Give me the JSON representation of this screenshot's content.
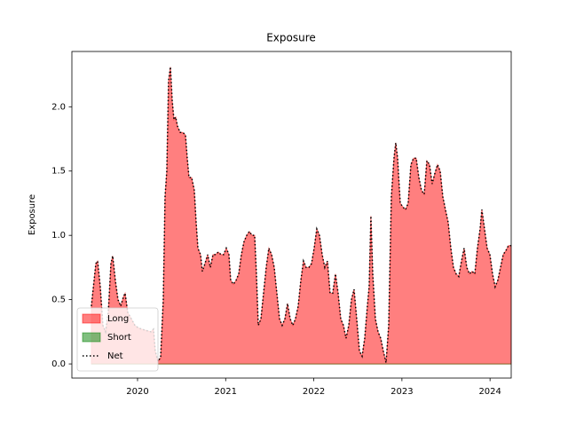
{
  "chart_data": {
    "type": "area",
    "title": "Exposure",
    "y_label": "Exposure",
    "x": [
      2019.476,
      2019.507,
      2019.527,
      2019.547,
      2019.577,
      2019.607,
      2019.637,
      2019.668,
      2019.698,
      2019.718,
      2019.748,
      2019.778,
      2019.809,
      2019.839,
      2019.859,
      2019.889,
      2019.93,
      2019.97,
      2020.01,
      2020.05,
      2020.101,
      2020.151,
      2020.181,
      2020.201,
      2020.232,
      2020.262,
      2020.292,
      2020.312,
      2020.332,
      2020.352,
      2020.373,
      2020.393,
      2020.413,
      2020.433,
      2020.453,
      2020.483,
      2020.514,
      2020.544,
      2020.564,
      2020.584,
      2020.614,
      2020.644,
      2020.665,
      2020.685,
      2020.715,
      2020.735,
      2020.765,
      2020.796,
      2020.826,
      2020.856,
      2020.886,
      2020.916,
      2020.947,
      2020.977,
      2021.007,
      2021.037,
      2021.057,
      2021.088,
      2021.118,
      2021.148,
      2021.178,
      2021.208,
      2021.239,
      2021.269,
      2021.299,
      2021.329,
      2021.349,
      2021.37,
      2021.4,
      2021.43,
      2021.46,
      2021.49,
      2021.521,
      2021.551,
      2021.581,
      2021.611,
      2021.641,
      2021.672,
      2021.702,
      2021.732,
      2021.762,
      2021.792,
      2021.823,
      2021.853,
      2021.883,
      2021.913,
      2021.944,
      2021.974,
      2022.004,
      2022.034,
      2022.064,
      2022.095,
      2022.125,
      2022.155,
      2022.185,
      2022.215,
      2022.246,
      2022.276,
      2022.306,
      2022.336,
      2022.366,
      2022.397,
      2022.427,
      2022.457,
      2022.487,
      2022.518,
      2022.548,
      2022.578,
      2022.608,
      2022.628,
      2022.648,
      2022.669,
      2022.699,
      2022.729,
      2022.759,
      2022.789,
      2022.82,
      2022.85,
      2022.88,
      2022.91,
      2022.93,
      2022.951,
      2022.981,
      2023.011,
      2023.041,
      2023.071,
      2023.102,
      2023.132,
      2023.162,
      2023.192,
      2023.222,
      2023.253,
      2023.283,
      2023.313,
      2023.343,
      2023.373,
      2023.404,
      2023.434,
      2023.464,
      2023.494,
      2023.525,
      2023.555,
      2023.585,
      2023.615,
      2023.645,
      2023.676,
      2023.706,
      2023.736,
      2023.766,
      2023.796,
      2023.827,
      2023.857,
      2023.887,
      2023.907,
      2023.937,
      2023.967,
      2023.998,
      2024.028,
      2024.058,
      2024.088,
      2024.119,
      2024.149,
      2024.179,
      2024.209,
      2024.239
    ],
    "series": [
      {
        "name": "Long",
        "kind": "area",
        "color": "#ff0000",
        "alpha": 0.5,
        "values": [
          0.45,
          0.65,
          0.78,
          0.8,
          0.6,
          0.3,
          0.25,
          0.4,
          0.78,
          0.84,
          0.65,
          0.5,
          0.45,
          0.52,
          0.55,
          0.4,
          0.35,
          0.3,
          0.28,
          0.27,
          0.26,
          0.25,
          0.27,
          0.1,
          0.02,
          0.05,
          0.5,
          1.3,
          1.5,
          2.2,
          2.31,
          2.05,
          1.9,
          1.92,
          1.85,
          1.8,
          1.8,
          1.78,
          1.6,
          1.45,
          1.45,
          1.35,
          1.1,
          0.9,
          0.85,
          0.72,
          0.78,
          0.85,
          0.75,
          0.85,
          0.85,
          0.87,
          0.85,
          0.85,
          0.9,
          0.85,
          0.65,
          0.62,
          0.65,
          0.7,
          0.85,
          0.95,
          1.0,
          1.03,
          1.0,
          1.0,
          0.7,
          0.3,
          0.35,
          0.55,
          0.75,
          0.9,
          0.85,
          0.75,
          0.55,
          0.35,
          0.3,
          0.35,
          0.47,
          0.35,
          0.3,
          0.35,
          0.45,
          0.65,
          0.8,
          0.75,
          0.75,
          0.78,
          0.9,
          1.05,
          1.0,
          0.85,
          0.75,
          0.8,
          0.55,
          0.55,
          0.7,
          0.55,
          0.35,
          0.3,
          0.2,
          0.3,
          0.5,
          0.58,
          0.35,
          0.1,
          0.06,
          0.2,
          0.45,
          0.6,
          1.15,
          0.7,
          0.35,
          0.25,
          0.2,
          0.1,
          0.01,
          0.3,
          1.3,
          1.6,
          1.72,
          1.6,
          1.25,
          1.22,
          1.2,
          1.25,
          1.55,
          1.6,
          1.6,
          1.45,
          1.35,
          1.32,
          1.58,
          1.55,
          1.4,
          1.48,
          1.55,
          1.5,
          1.3,
          1.2,
          1.1,
          0.9,
          0.75,
          0.7,
          0.68,
          0.8,
          0.9,
          0.75,
          0.7,
          0.72,
          0.7,
          0.9,
          1.05,
          1.2,
          1.05,
          0.9,
          0.85,
          0.7,
          0.6,
          0.65,
          0.75,
          0.85,
          0.88,
          0.92,
          0.92
        ]
      },
      {
        "name": "Short",
        "kind": "area",
        "color": "#008000",
        "alpha": 0.5,
        "values": [
          0,
          0,
          0,
          0,
          0,
          0,
          0,
          0,
          0,
          0,
          0,
          0,
          0,
          0,
          0,
          0,
          0,
          0,
          0,
          0,
          0,
          0,
          0,
          0,
          0,
          0,
          0,
          0,
          0,
          0,
          0,
          0,
          0,
          0,
          0,
          0,
          0,
          0,
          0,
          0,
          0,
          0,
          0,
          0,
          0,
          0,
          0,
          0,
          0,
          0,
          0,
          0,
          0,
          0,
          0,
          0,
          0,
          0,
          0,
          0,
          0,
          0,
          0,
          0,
          0,
          0,
          0,
          0,
          0,
          0,
          0,
          0,
          0,
          0,
          0,
          0,
          0,
          0,
          0,
          0,
          0,
          0,
          0,
          0,
          0,
          0,
          0,
          0,
          0,
          0,
          0,
          0,
          0,
          0,
          0,
          0,
          0,
          0,
          0,
          0,
          0,
          0,
          0,
          0,
          0,
          0,
          0,
          0,
          0,
          0,
          0,
          0,
          0,
          0,
          0,
          0,
          0,
          0,
          0,
          0,
          0,
          0,
          0,
          0,
          0,
          0,
          0,
          0,
          0,
          0,
          0,
          0,
          0,
          0,
          0,
          0,
          0,
          0,
          0,
          0,
          0,
          0,
          0,
          0,
          0,
          0,
          0,
          0,
          0,
          0,
          0,
          0,
          0,
          0,
          0,
          0,
          0,
          0,
          0,
          0,
          0,
          0,
          0,
          0,
          0
        ]
      },
      {
        "name": "Net",
        "kind": "dotted-line",
        "color": "#000000",
        "values": [
          0.45,
          0.65,
          0.78,
          0.8,
          0.6,
          0.3,
          0.25,
          0.4,
          0.78,
          0.84,
          0.65,
          0.5,
          0.45,
          0.52,
          0.55,
          0.4,
          0.35,
          0.3,
          0.28,
          0.27,
          0.26,
          0.25,
          0.27,
          0.1,
          0.02,
          0.05,
          0.5,
          1.3,
          1.5,
          2.2,
          2.31,
          2.05,
          1.9,
          1.92,
          1.85,
          1.8,
          1.8,
          1.78,
          1.6,
          1.45,
          1.45,
          1.35,
          1.1,
          0.9,
          0.85,
          0.72,
          0.78,
          0.85,
          0.75,
          0.85,
          0.85,
          0.87,
          0.85,
          0.85,
          0.9,
          0.85,
          0.65,
          0.62,
          0.65,
          0.7,
          0.85,
          0.95,
          1.0,
          1.03,
          1.0,
          1.0,
          0.7,
          0.3,
          0.35,
          0.55,
          0.75,
          0.9,
          0.85,
          0.75,
          0.55,
          0.35,
          0.3,
          0.35,
          0.47,
          0.35,
          0.3,
          0.35,
          0.45,
          0.65,
          0.8,
          0.75,
          0.75,
          0.78,
          0.9,
          1.05,
          1.0,
          0.85,
          0.75,
          0.8,
          0.55,
          0.55,
          0.7,
          0.55,
          0.35,
          0.3,
          0.2,
          0.3,
          0.5,
          0.58,
          0.35,
          0.1,
          0.06,
          0.2,
          0.45,
          0.6,
          1.15,
          0.7,
          0.35,
          0.25,
          0.2,
          0.1,
          0.01,
          0.3,
          1.3,
          1.6,
          1.72,
          1.6,
          1.25,
          1.22,
          1.2,
          1.25,
          1.55,
          1.6,
          1.6,
          1.45,
          1.35,
          1.32,
          1.58,
          1.55,
          1.4,
          1.48,
          1.55,
          1.5,
          1.3,
          1.2,
          1.1,
          0.9,
          0.75,
          0.7,
          0.68,
          0.8,
          0.9,
          0.75,
          0.7,
          0.72,
          0.7,
          0.9,
          1.05,
          1.2,
          1.05,
          0.9,
          0.85,
          0.7,
          0.6,
          0.65,
          0.75,
          0.85,
          0.88,
          0.92,
          0.92
        ]
      }
    ],
    "xlim": [
      2019.255,
      2024.24
    ],
    "xticks": [
      2020,
      2021,
      2022,
      2023,
      2024
    ],
    "ylim": [
      -0.11,
      2.43
    ],
    "yticks": [
      {
        "value": 0,
        "label": "0.0"
      },
      0.5,
      {
        "value": 1,
        "label": "1.0"
      },
      1.5,
      {
        "value": 2,
        "label": "2.0"
      }
    ],
    "grid": false,
    "legend": "lower left"
  }
}
